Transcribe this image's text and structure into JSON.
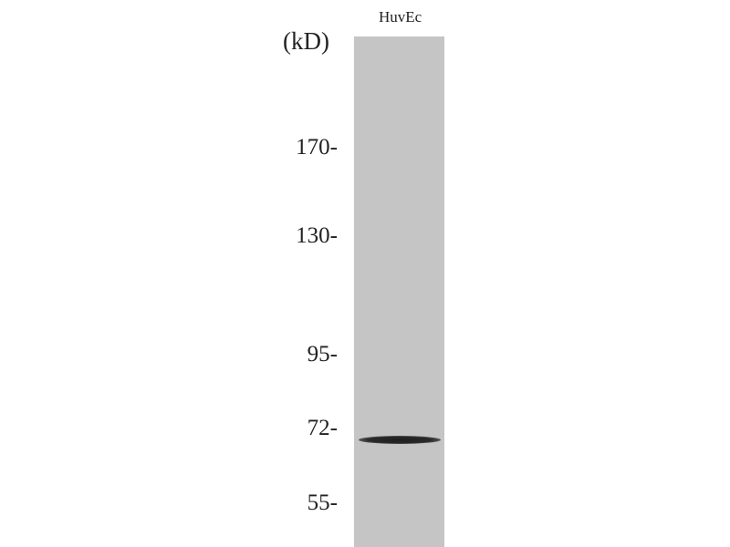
{
  "blot": {
    "unit_label": "(kD)",
    "lanes": [
      {
        "label": "HuvEc",
        "bands": [
          {
            "kD": 70
          }
        ]
      }
    ],
    "markers": [
      {
        "label": "170-",
        "kD": 170
      },
      {
        "label": "130-",
        "kD": 130
      },
      {
        "label": "95-",
        "kD": 95
      },
      {
        "label": "72-",
        "kD": 72
      },
      {
        "label": "55-",
        "kD": 55
      }
    ],
    "colors": {
      "lane": "#c5c5c5",
      "band": "#222222",
      "background": "#ffffff"
    }
  }
}
